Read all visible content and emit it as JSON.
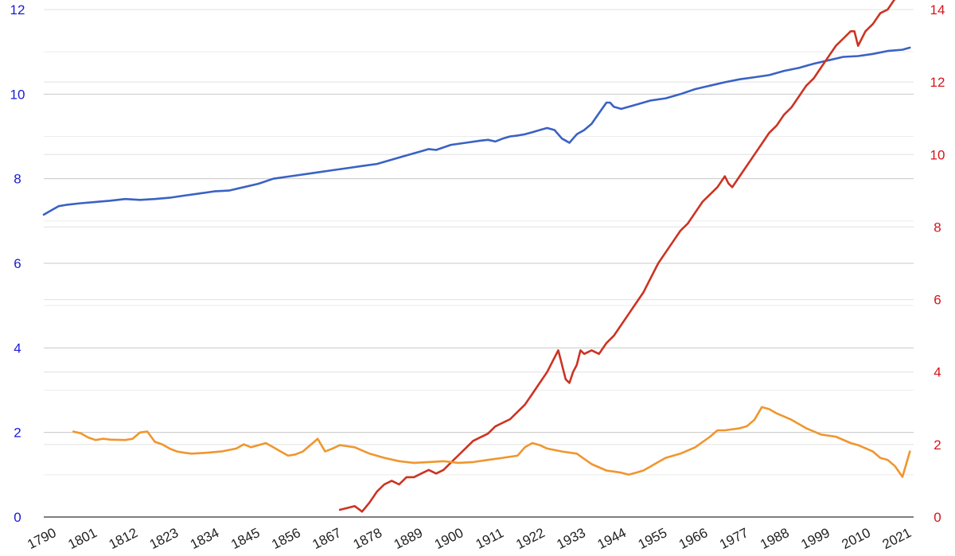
{
  "chart_data": {
    "type": "line",
    "title": "",
    "xlabel": "",
    "ylabel_left": "",
    "ylabel_right": "",
    "xlim": [
      1790,
      2025
    ],
    "x_ticks": [
      1790,
      1801,
      1812,
      1823,
      1834,
      1845,
      1856,
      1867,
      1878,
      1889,
      1900,
      1911,
      1922,
      1933,
      1944,
      1955,
      1966,
      1977,
      1988,
      1999,
      2010,
      2021
    ],
    "y_left": {
      "ylim": [
        0,
        12
      ],
      "ticks": [
        0,
        2,
        4,
        6,
        8,
        10,
        12
      ],
      "color": "#1a1ad6"
    },
    "y_right": {
      "ylim": [
        0,
        14
      ],
      "ticks": [
        0,
        2,
        4,
        6,
        8,
        10,
        12,
        14
      ],
      "color": "#d6141a"
    },
    "grid": true,
    "legend": "none",
    "series": [
      {
        "axis": "left",
        "color": "#3a62c4",
        "x": [
          1790,
          1792,
          1794,
          1796,
          1800,
          1804,
          1808,
          1812,
          1816,
          1820,
          1824,
          1828,
          1832,
          1836,
          1840,
          1844,
          1848,
          1852,
          1856,
          1860,
          1864,
          1868,
          1872,
          1876,
          1880,
          1884,
          1888,
          1890,
          1892,
          1894,
          1896,
          1900,
          1904,
          1908,
          1910,
          1912,
          1914,
          1916,
          1918,
          1920,
          1922,
          1924,
          1926,
          1928,
          1930,
          1931,
          1932,
          1933,
          1934,
          1936,
          1938,
          1940,
          1942,
          1943,
          1944,
          1946,
          1948,
          1950,
          1954,
          1958,
          1962,
          1966,
          1970,
          1974,
          1978,
          1982,
          1986,
          1990,
          1994,
          1998,
          2002,
          2006,
          2010,
          2014,
          2018,
          2022,
          2024
        ],
        "y": [
          7.15,
          7.25,
          7.35,
          7.38,
          7.42,
          7.45,
          7.48,
          7.52,
          7.5,
          7.52,
          7.55,
          7.6,
          7.65,
          7.7,
          7.72,
          7.8,
          7.88,
          8.0,
          8.05,
          8.1,
          8.15,
          8.2,
          8.25,
          8.3,
          8.35,
          8.45,
          8.55,
          8.6,
          8.65,
          8.7,
          8.68,
          8.8,
          8.85,
          8.9,
          8.92,
          8.88,
          8.95,
          9.0,
          9.02,
          9.05,
          9.1,
          9.15,
          9.2,
          9.15,
          8.95,
          8.9,
          8.85,
          8.95,
          9.05,
          9.15,
          9.3,
          9.55,
          9.8,
          9.8,
          9.7,
          9.65,
          9.7,
          9.75,
          9.85,
          9.9,
          10.0,
          10.12,
          10.2,
          10.28,
          10.35,
          10.4,
          10.45,
          10.55,
          10.62,
          10.72,
          10.8,
          10.88,
          10.9,
          10.95,
          11.02,
          11.05,
          11.1
        ]
      },
      {
        "axis": "right",
        "color": "#cc3322",
        "x": [
          1870,
          1872,
          1874,
          1876,
          1878,
          1880,
          1882,
          1884,
          1886,
          1888,
          1890,
          1892,
          1894,
          1896,
          1898,
          1900,
          1902,
          1904,
          1906,
          1908,
          1910,
          1912,
          1914,
          1916,
          1918,
          1920,
          1922,
          1924,
          1926,
          1928,
          1929,
          1931,
          1932,
          1933,
          1934,
          1935,
          1936,
          1938,
          1940,
          1942,
          1944,
          1946,
          1948,
          1950,
          1952,
          1954,
          1956,
          1958,
          1960,
          1962,
          1964,
          1966,
          1968,
          1970,
          1972,
          1974,
          1975,
          1976,
          1978,
          1980,
          1982,
          1984,
          1986,
          1988,
          1990,
          1992,
          1994,
          1996,
          1998,
          2000,
          2002,
          2004,
          2006,
          2008,
          2009,
          2010,
          2012,
          2014,
          2016,
          2018,
          2020,
          2022,
          2023,
          2024
        ],
        "y": [
          0.2,
          0.25,
          0.3,
          0.15,
          0.4,
          0.7,
          0.9,
          1.0,
          0.9,
          1.1,
          1.1,
          1.2,
          1.3,
          1.2,
          1.3,
          1.5,
          1.7,
          1.9,
          2.1,
          2.2,
          2.3,
          2.5,
          2.6,
          2.7,
          2.9,
          3.1,
          3.4,
          3.7,
          4.0,
          4.4,
          4.6,
          3.8,
          3.7,
          4.0,
          4.2,
          4.6,
          4.5,
          4.6,
          4.5,
          4.8,
          5.0,
          5.3,
          5.6,
          5.9,
          6.2,
          6.6,
          7.0,
          7.3,
          7.6,
          7.9,
          8.1,
          8.4,
          8.7,
          8.9,
          9.1,
          9.4,
          9.2,
          9.1,
          9.4,
          9.7,
          10.0,
          10.3,
          10.6,
          10.8,
          11.1,
          11.3,
          11.6,
          11.9,
          12.1,
          12.4,
          12.7,
          13.0,
          13.2,
          13.4,
          13.4,
          13.0,
          13.4,
          13.6,
          13.9,
          14.0,
          14.3,
          14.6,
          14.8,
          14.9
        ]
      },
      {
        "axis": "left",
        "color": "#f0962e",
        "x": [
          1798,
          1800,
          1802,
          1804,
          1806,
          1808,
          1812,
          1814,
          1816,
          1818,
          1820,
          1822,
          1824,
          1826,
          1828,
          1830,
          1834,
          1838,
          1842,
          1844,
          1846,
          1848,
          1850,
          1852,
          1854,
          1856,
          1858,
          1860,
          1862,
          1864,
          1866,
          1868,
          1870,
          1874,
          1878,
          1882,
          1886,
          1890,
          1894,
          1898,
          1902,
          1906,
          1910,
          1914,
          1918,
          1920,
          1922,
          1924,
          1926,
          1930,
          1934,
          1938,
          1942,
          1946,
          1948,
          1950,
          1952,
          1954,
          1956,
          1958,
          1962,
          1966,
          1970,
          1972,
          1974,
          1978,
          1980,
          1982,
          1984,
          1986,
          1988,
          1992,
          1996,
          2000,
          2004,
          2008,
          2010,
          2014,
          2016,
          2018,
          2020,
          2022,
          2024
        ],
        "y": [
          2.02,
          1.98,
          1.88,
          1.82,
          1.85,
          1.83,
          1.82,
          1.85,
          2.0,
          2.02,
          1.78,
          1.72,
          1.62,
          1.55,
          1.52,
          1.5,
          1.52,
          1.55,
          1.62,
          1.72,
          1.65,
          1.7,
          1.75,
          1.65,
          1.55,
          1.45,
          1.48,
          1.55,
          1.7,
          1.85,
          1.55,
          1.62,
          1.7,
          1.65,
          1.5,
          1.4,
          1.32,
          1.28,
          1.3,
          1.32,
          1.28,
          1.3,
          1.35,
          1.4,
          1.45,
          1.65,
          1.75,
          1.7,
          1.62,
          1.55,
          1.5,
          1.25,
          1.1,
          1.05,
          1.0,
          1.05,
          1.1,
          1.2,
          1.3,
          1.4,
          1.5,
          1.65,
          1.9,
          2.05,
          2.05,
          2.1,
          2.15,
          2.3,
          2.6,
          2.55,
          2.45,
          2.3,
          2.1,
          1.95,
          1.9,
          1.75,
          1.7,
          1.55,
          1.4,
          1.35,
          1.2,
          0.95,
          1.55
        ]
      }
    ]
  }
}
